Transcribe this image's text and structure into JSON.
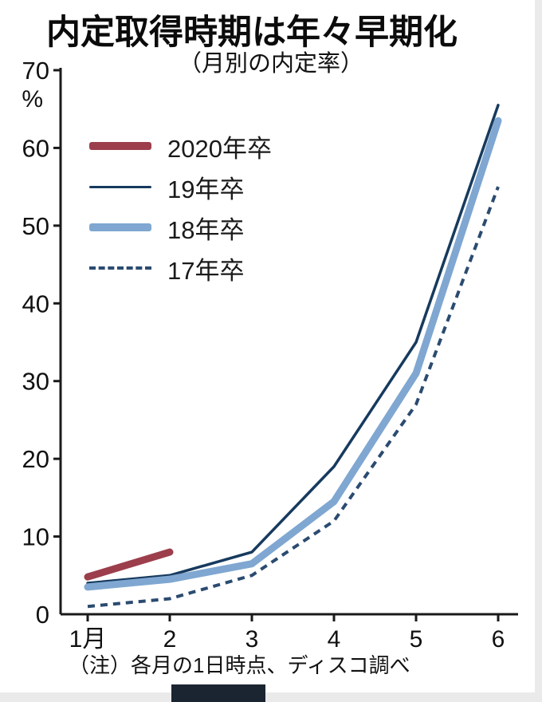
{
  "header": {
    "title": "内定取得時期は年々早期化",
    "subtitle": "（月別の内定率）"
  },
  "chart_data": {
    "type": "line",
    "title": "内定取得時期は年々早期化",
    "subtitle": "（月別の内定率）",
    "categories": [
      "1月",
      "2",
      "3",
      "4",
      "5",
      "6"
    ],
    "unit": "%",
    "ylim": [
      0,
      70
    ],
    "yticks": [
      0,
      10,
      20,
      30,
      40,
      50,
      60,
      70
    ],
    "axis_color": "#1a1a1a",
    "series": [
      {
        "name": "2020年卒",
        "color": "#9c3e4b",
        "width": 9,
        "dash": null,
        "values": [
          4.8,
          8,
          null,
          null,
          null,
          null
        ]
      },
      {
        "name": "19年卒",
        "color": "#173a5e",
        "width": 3.5,
        "dash": null,
        "values": [
          4,
          5,
          8,
          19,
          35,
          65.5
        ]
      },
      {
        "name": "18年卒",
        "color": "#7fa7d1",
        "width": 9,
        "dash": null,
        "values": [
          3.5,
          4.5,
          6.5,
          14.5,
          31,
          63.5
        ]
      },
      {
        "name": "17年卒",
        "color": "#2b4b70",
        "width": 4,
        "dash": "9 7",
        "values": [
          1,
          2,
          5,
          12,
          27,
          55
        ]
      }
    ],
    "note": "（注）各月の1日時点、ディスコ調べ",
    "legend_position": "top-left",
    "grid": false
  }
}
